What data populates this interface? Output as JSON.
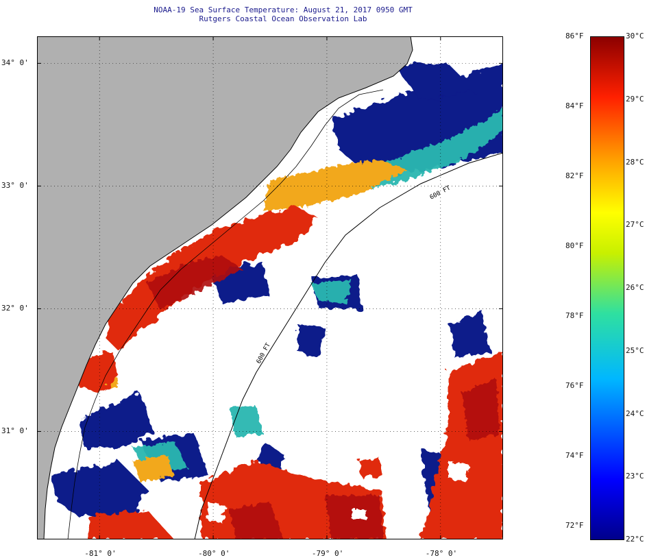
{
  "title_line1": "NOAA-19 Sea Surface Temperature:  August 21, 2017 0950 GMT",
  "title_line2": "Rutgers Coastal Ocean Observation Lab",
  "map": {
    "lon_range": [
      -81.55,
      -77.45
    ],
    "lat_range": [
      30.12,
      34.22
    ],
    "lat_ticks": [
      {
        "value": 34,
        "label": "34° 0'"
      },
      {
        "value": 33,
        "label": "33° 0'"
      },
      {
        "value": 32,
        "label": "32° 0'"
      },
      {
        "value": 31,
        "label": "31° 0'"
      }
    ],
    "lon_ticks": [
      {
        "value": -81,
        "label": "-81° 0'"
      },
      {
        "value": -80,
        "label": "-80° 0'"
      },
      {
        "value": -79,
        "label": "-79° 0'"
      },
      {
        "value": -78,
        "label": "-78° 0'"
      }
    ],
    "isobath_labels": [
      "600 FT",
      "600 FT"
    ],
    "colors": {
      "land": "#b0b0b0",
      "cloud": "#ffffff",
      "cold": "#0a1a8a",
      "warm": "#e02a0a",
      "hot": "#b00a0a"
    }
  },
  "colorbar": {
    "min_c": 22,
    "max_c": 30,
    "celsius_labels": [
      "30°C",
      "29°C",
      "28°C",
      "27°C",
      "26°C",
      "25°C",
      "24°C",
      "23°C",
      "22°C"
    ],
    "fahrenheit_labels": [
      "86°F",
      "84°F",
      "82°F",
      "80°F",
      "78°F",
      "76°F",
      "74°F",
      "72°F"
    ]
  }
}
